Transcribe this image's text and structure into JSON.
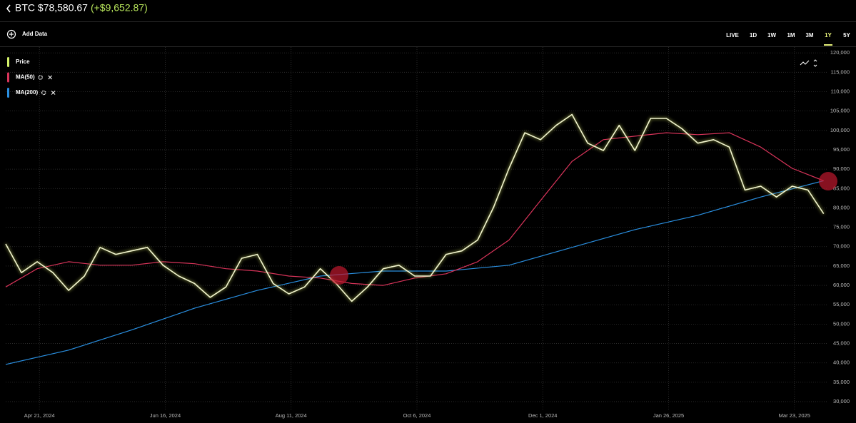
{
  "header": {
    "title": "BTC $78,580.67",
    "change": "(+$9,652.87)"
  },
  "toolbar": {
    "add_data": "Add Data",
    "ranges": [
      "LIVE",
      "1D",
      "1W",
      "1M",
      "3M",
      "1Y",
      "5Y"
    ],
    "selected": "1Y"
  },
  "chart_data": {
    "type": "line",
    "xlim": [
      "2024-04-06",
      "2025-04-07"
    ],
    "xticks": [
      {
        "value": "2024-04-21",
        "label": "Apr 21, 2024"
      },
      {
        "value": "2024-06-16",
        "label": "Jun 16, 2024"
      },
      {
        "value": "2024-08-11",
        "label": "Aug 11, 2024"
      },
      {
        "value": "2024-10-06",
        "label": "Oct 6, 2024"
      },
      {
        "value": "2024-12-01",
        "label": "Dec 1, 2024"
      },
      {
        "value": "2025-01-26",
        "label": "Jan 26, 2025"
      },
      {
        "value": "2025-03-23",
        "label": "Mar 23, 2025"
      }
    ],
    "ylim": [
      27800,
      121500
    ],
    "yticks": [
      {
        "value": 30000,
        "label": "30,000"
      },
      {
        "value": 35000,
        "label": "35,000"
      },
      {
        "value": 40000,
        "label": "40,000"
      },
      {
        "value": 45000,
        "label": "45,000"
      },
      {
        "value": 50000,
        "label": "50,000"
      },
      {
        "value": 55000,
        "label": "55,000"
      },
      {
        "value": 60000,
        "label": "60,000"
      },
      {
        "value": 65000,
        "label": "65,000"
      },
      {
        "value": 70000,
        "label": "70,000"
      },
      {
        "value": 75000,
        "label": "75,000"
      },
      {
        "value": 80000,
        "label": "80,000"
      },
      {
        "value": 85000,
        "label": "85,000"
      },
      {
        "value": 90000,
        "label": "90,000"
      },
      {
        "value": 95000,
        "label": "95,000"
      },
      {
        "value": 100000,
        "label": "100,000"
      },
      {
        "value": 105000,
        "label": "105,000"
      },
      {
        "value": 110000,
        "label": "110,000"
      },
      {
        "value": 115000,
        "label": "115,000"
      },
      {
        "value": 120000,
        "label": "120,000"
      }
    ],
    "grid": true,
    "series": [
      {
        "name": "Price",
        "color": "#f3f6cf",
        "legend_color": "#d4f26a",
        "glow": true,
        "x": [
          "2024-04-06",
          "2024-04-13",
          "2024-04-20",
          "2024-04-27",
          "2024-05-04",
          "2024-05-11",
          "2024-05-18",
          "2024-05-25",
          "2024-06-01",
          "2024-06-08",
          "2024-06-15",
          "2024-06-22",
          "2024-06-29",
          "2024-07-06",
          "2024-07-13",
          "2024-07-20",
          "2024-07-27",
          "2024-08-03",
          "2024-08-10",
          "2024-08-17",
          "2024-08-24",
          "2024-08-31",
          "2024-09-07",
          "2024-09-14",
          "2024-09-21",
          "2024-09-28",
          "2024-10-05",
          "2024-10-12",
          "2024-10-19",
          "2024-10-26",
          "2024-11-02",
          "2024-11-09",
          "2024-11-16",
          "2024-11-23",
          "2024-11-30",
          "2024-12-07",
          "2024-12-14",
          "2024-12-21",
          "2024-12-28",
          "2025-01-04",
          "2025-01-11",
          "2025-01-18",
          "2025-01-25",
          "2025-02-01",
          "2025-02-08",
          "2025-02-15",
          "2025-02-22",
          "2025-03-01",
          "2025-03-08",
          "2025-03-15",
          "2025-03-22",
          "2025-03-29",
          "2025-04-05"
        ],
        "values": [
          70700,
          63300,
          66100,
          63300,
          58700,
          62400,
          69800,
          68000,
          68900,
          69800,
          65200,
          62400,
          60500,
          56900,
          59600,
          67000,
          68000,
          60500,
          57800,
          59600,
          64300,
          60500,
          55900,
          59600,
          64300,
          65200,
          62400,
          62400,
          68000,
          68900,
          71700,
          80000,
          90200,
          99400,
          97600,
          101300,
          104100,
          96700,
          94800,
          101300,
          94800,
          103100,
          103100,
          100400,
          96700,
          97600,
          95700,
          84600,
          85600,
          82800,
          85600,
          84600,
          78500
        ]
      },
      {
        "name": "MA(50)",
        "color": "#d9345a",
        "x": [
          "2024-04-06",
          "2024-04-20",
          "2024-05-04",
          "2024-05-18",
          "2024-06-01",
          "2024-06-15",
          "2024-06-29",
          "2024-07-13",
          "2024-07-27",
          "2024-08-10",
          "2024-08-24",
          "2024-09-07",
          "2024-09-21",
          "2024-10-05",
          "2024-10-19",
          "2024-11-02",
          "2024-11-16",
          "2024-11-30",
          "2024-12-14",
          "2024-12-28",
          "2025-01-11",
          "2025-01-25",
          "2025-02-08",
          "2025-02-22",
          "2025-03-08",
          "2025-03-22",
          "2025-04-05"
        ],
        "values": [
          59600,
          64300,
          66100,
          65200,
          65200,
          66100,
          65600,
          64300,
          63700,
          62400,
          61900,
          60500,
          60000,
          61900,
          63000,
          66100,
          71700,
          81900,
          92000,
          97600,
          98500,
          99400,
          98900,
          99400,
          95700,
          90200,
          87000
        ]
      },
      {
        "name": "MA(200)",
        "color": "#2a8fe0",
        "x": [
          "2024-04-06",
          "2024-05-04",
          "2024-06-01",
          "2024-06-29",
          "2024-07-27",
          "2024-08-24",
          "2024-09-21",
          "2024-10-19",
          "2024-11-16",
          "2024-12-14",
          "2025-01-11",
          "2025-02-08",
          "2025-03-08",
          "2025-04-05"
        ],
        "values": [
          39600,
          43300,
          48500,
          54100,
          58700,
          62400,
          63700,
          63700,
          65200,
          69800,
          74400,
          78100,
          82800,
          87000
        ]
      }
    ]
  }
}
